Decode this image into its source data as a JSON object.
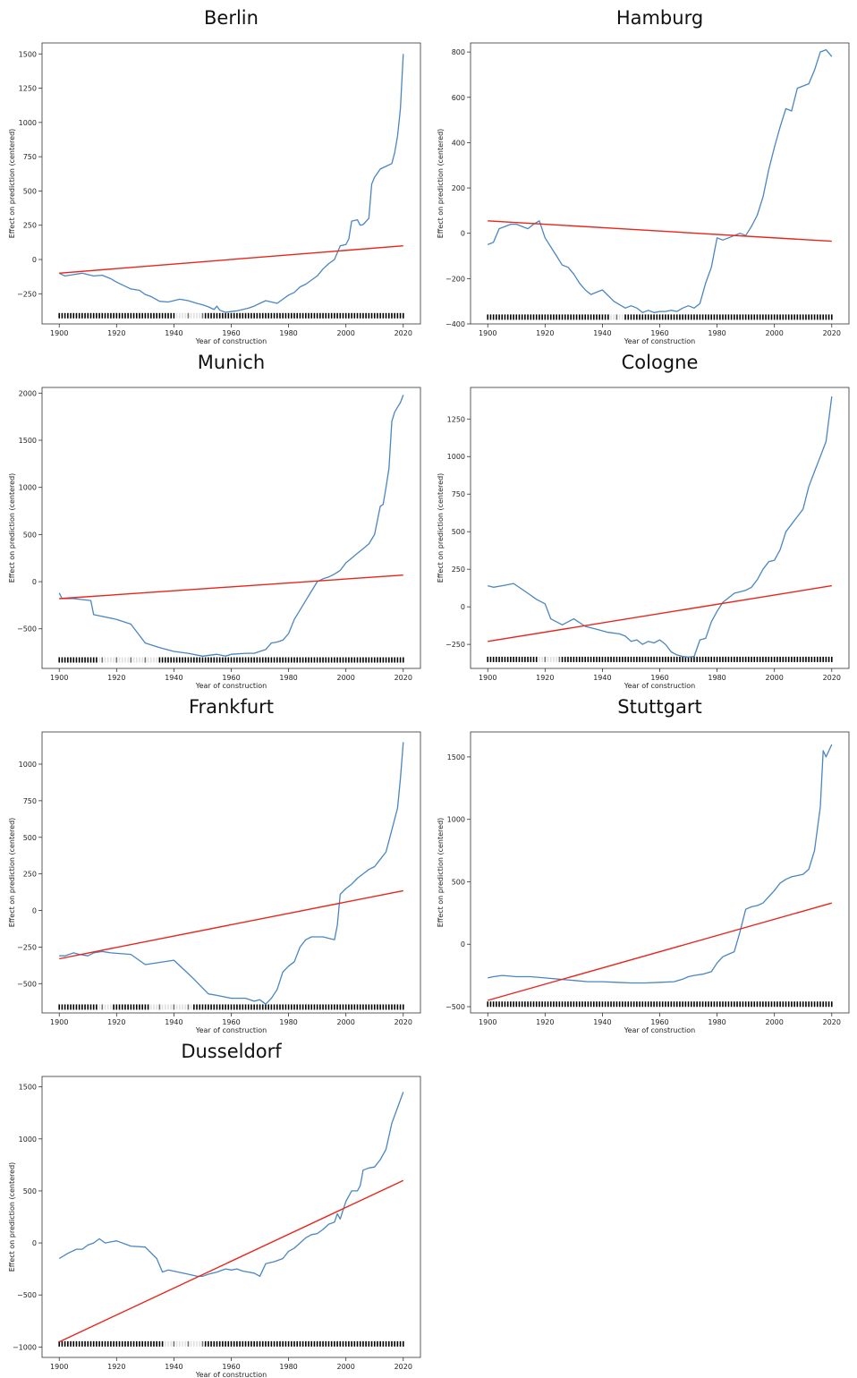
{
  "figure": {
    "xlabel": "Year of construction",
    "ylabel": "Effect on prediction (centered)"
  },
  "colors": {
    "pdp_line": "#4a86c0",
    "fit_line": "#e8251c",
    "rug": "#000000",
    "axes": "#333333"
  },
  "chart_data": [
    {
      "type": "line",
      "title": "Berlin",
      "xlabel": "Year of construction",
      "ylabel": "Effect on prediction (centered)",
      "xlim": [
        1894,
        2026
      ],
      "ylim": [
        -470,
        1580
      ],
      "xticks": [
        1900,
        1920,
        1940,
        1960,
        1980,
        2000,
        2020
      ],
      "yticks": [
        -250,
        0,
        250,
        500,
        750,
        1000,
        1250,
        1500
      ],
      "rug_y": -410,
      "rug_gaps": [
        [
          1941,
          1950
        ]
      ],
      "series": [
        {
          "kind": "pdp",
          "x": [
            1900,
            1902,
            1905,
            1908,
            1910,
            1912,
            1915,
            1918,
            1920,
            1925,
            1928,
            1930,
            1932,
            1935,
            1938,
            1940,
            1942,
            1945,
            1948,
            1950,
            1952,
            1954,
            1955,
            1956,
            1958,
            1960,
            1962,
            1964,
            1966,
            1968,
            1970,
            1972,
            1974,
            1976,
            1978,
            1980,
            1982,
            1984,
            1986,
            1988,
            1990,
            1992,
            1994,
            1996,
            1997,
            1998,
            2000,
            2001,
            2002,
            2004,
            2005,
            2006,
            2008,
            2009,
            2010,
            2012,
            2014,
            2016,
            2017,
            2018,
            2019,
            2020
          ],
          "y": [
            -100,
            -120,
            -110,
            -100,
            -110,
            -120,
            -115,
            -140,
            -165,
            -215,
            -225,
            -255,
            -270,
            -305,
            -310,
            -300,
            -290,
            -300,
            -320,
            -330,
            -345,
            -365,
            -340,
            -370,
            -385,
            -380,
            -375,
            -365,
            -355,
            -340,
            -320,
            -300,
            -310,
            -320,
            -290,
            -260,
            -240,
            -200,
            -180,
            -150,
            -120,
            -70,
            -30,
            0,
            50,
            100,
            110,
            150,
            280,
            290,
            250,
            255,
            300,
            550,
            600,
            660,
            680,
            700,
            780,
            900,
            1100,
            1500
          ]
        },
        {
          "kind": "fit",
          "x": [
            1900,
            2020
          ],
          "y": [
            -100,
            100
          ]
        }
      ]
    },
    {
      "type": "line",
      "title": "Hamburg",
      "xlabel": "Year of construction",
      "ylabel": "Effect on prediction (centered)",
      "xlim": [
        1894,
        2026
      ],
      "ylim": [
        -400,
        840
      ],
      "xticks": [
        1900,
        1920,
        1940,
        1960,
        1980,
        2000,
        2020
      ],
      "yticks": [
        -400,
        -200,
        0,
        200,
        400,
        600,
        800
      ],
      "rug_y": -370,
      "rug_gaps": [
        [
          1943,
          1947
        ]
      ],
      "series": [
        {
          "kind": "pdp",
          "x": [
            1900,
            1902,
            1904,
            1906,
            1908,
            1910,
            1912,
            1914,
            1916,
            1918,
            1920,
            1924,
            1926,
            1928,
            1930,
            1932,
            1934,
            1936,
            1938,
            1940,
            1944,
            1948,
            1950,
            1952,
            1954,
            1956,
            1958,
            1960,
            1962,
            1964,
            1966,
            1968,
            1970,
            1972,
            1974,
            1976,
            1978,
            1980,
            1982,
            1984,
            1986,
            1988,
            1990,
            1992,
            1994,
            1996,
            1998,
            2000,
            2002,
            2004,
            2006,
            2008,
            2010,
            2012,
            2014,
            2016,
            2018,
            2020
          ],
          "y": [
            -50,
            -40,
            20,
            30,
            40,
            40,
            30,
            20,
            40,
            55,
            -20,
            -100,
            -140,
            -150,
            -180,
            -220,
            -250,
            -270,
            -260,
            -250,
            -300,
            -330,
            -320,
            -330,
            -350,
            -340,
            -350,
            -345,
            -345,
            -340,
            -345,
            -330,
            -320,
            -330,
            -310,
            -220,
            -150,
            -20,
            -30,
            -20,
            -10,
            0,
            -10,
            30,
            80,
            160,
            280,
            380,
            470,
            550,
            540,
            640,
            650,
            660,
            720,
            800,
            810,
            780
          ]
        },
        {
          "kind": "fit",
          "x": [
            1900,
            2020
          ],
          "y": [
            55,
            -35
          ]
        }
      ]
    },
    {
      "type": "line",
      "title": "Munich",
      "xlabel": "Year of construction",
      "ylabel": "Effect on prediction (centered)",
      "xlim": [
        1894,
        2026
      ],
      "ylim": [
        -920,
        2060
      ],
      "xticks": [
        1900,
        1920,
        1940,
        1960,
        1980,
        2000,
        2020
      ],
      "yticks": [
        -500,
        0,
        500,
        1000,
        1500,
        2000
      ],
      "rug_y": -830,
      "rug_gaps": [
        [
          1914,
          1934
        ]
      ],
      "series": [
        {
          "kind": "pdp",
          "x": [
            1900,
            1901,
            1905,
            1911,
            1912,
            1920,
            1925,
            1930,
            1935,
            1940,
            1945,
            1950,
            1955,
            1958,
            1960,
            1965,
            1968,
            1970,
            1972,
            1974,
            1976,
            1978,
            1980,
            1982,
            1984,
            1986,
            1988,
            1990,
            1992,
            1994,
            1996,
            1998,
            2000,
            2002,
            2004,
            2006,
            2008,
            2010,
            2012,
            2013,
            2014,
            2015,
            2016,
            2017,
            2018,
            2019,
            2020
          ],
          "y": [
            -120,
            -180,
            -180,
            -200,
            -350,
            -400,
            -450,
            -650,
            -700,
            -740,
            -760,
            -790,
            -770,
            -790,
            -770,
            -760,
            -760,
            -740,
            -720,
            -650,
            -640,
            -620,
            -550,
            -400,
            -300,
            -200,
            -100,
            0,
            30,
            50,
            80,
            120,
            200,
            250,
            300,
            350,
            400,
            500,
            800,
            820,
            1000,
            1200,
            1700,
            1800,
            1850,
            1900,
            1980
          ]
        },
        {
          "kind": "fit",
          "x": [
            1900,
            2020
          ],
          "y": [
            -180,
            70
          ]
        }
      ]
    },
    {
      "type": "line",
      "title": "Cologne",
      "xlabel": "Year of construction",
      "ylabel": "Effect on prediction (centered)",
      "xlim": [
        1894,
        2026
      ],
      "ylim": [
        -410,
        1460
      ],
      "xticks": [
        1900,
        1920,
        1940,
        1960,
        1980,
        2000,
        2020
      ],
      "yticks": [
        -250,
        0,
        250,
        500,
        750,
        1000,
        1250
      ],
      "rug_y": -350,
      "rug_gaps": [
        [
          1918,
          1925
        ]
      ],
      "series": [
        {
          "kind": "pdp",
          "x": [
            1900,
            1902,
            1905,
            1909,
            1914,
            1917,
            1920,
            1922,
            1926,
            1928,
            1930,
            1934,
            1938,
            1942,
            1946,
            1948,
            1950,
            1952,
            1954,
            1956,
            1958,
            1960,
            1962,
            1964,
            1966,
            1968,
            1970,
            1972,
            1974,
            1976,
            1978,
            1980,
            1982,
            1984,
            1986,
            1988,
            1990,
            1992,
            1994,
            1996,
            1998,
            2000,
            2002,
            2004,
            2006,
            2008,
            2010,
            2012,
            2014,
            2016,
            2018,
            2020
          ],
          "y": [
            140,
            130,
            140,
            155,
            90,
            50,
            20,
            -80,
            -120,
            -100,
            -80,
            -130,
            -150,
            -170,
            -180,
            -195,
            -230,
            -220,
            -250,
            -230,
            -240,
            -220,
            -250,
            -300,
            -320,
            -330,
            -335,
            -330,
            -220,
            -210,
            -100,
            -30,
            30,
            60,
            90,
            100,
            110,
            130,
            180,
            250,
            300,
            310,
            380,
            500,
            550,
            600,
            650,
            800,
            900,
            1000,
            1100,
            1400
          ]
        },
        {
          "kind": "fit",
          "x": [
            1900,
            2020
          ],
          "y": [
            -230,
            140
          ]
        }
      ]
    },
    {
      "type": "line",
      "title": "Frankfurt",
      "xlabel": "Year of construction",
      "ylabel": "Effect on prediction (centered)",
      "xlim": [
        1894,
        2026
      ],
      "ylim": [
        -700,
        1220
      ],
      "xticks": [
        1900,
        1920,
        1940,
        1960,
        1980,
        2000,
        2020
      ],
      "yticks": [
        -500,
        -250,
        0,
        250,
        500,
        750,
        1000
      ],
      "rug_y": -660,
      "rug_gaps": [
        [
          1914,
          1918
        ],
        [
          1932,
          1946
        ]
      ],
      "series": [
        {
          "kind": "pdp",
          "x": [
            1900,
            1902,
            1905,
            1907,
            1910,
            1912,
            1915,
            1918,
            1925,
            1930,
            1940,
            1946,
            1950,
            1952,
            1955,
            1960,
            1965,
            1968,
            1970,
            1972,
            1974,
            1976,
            1978,
            1980,
            1982,
            1984,
            1986,
            1988,
            1990,
            1992,
            1994,
            1996,
            1997,
            1998,
            2000,
            2002,
            2004,
            2006,
            2008,
            2010,
            2012,
            2014,
            2016,
            2018,
            2019,
            2020
          ],
          "y": [
            -310,
            -310,
            -290,
            -300,
            -310,
            -290,
            -280,
            -290,
            -300,
            -370,
            -340,
            -450,
            -530,
            -570,
            -580,
            -600,
            -600,
            -620,
            -610,
            -640,
            -600,
            -540,
            -420,
            -380,
            -350,
            -250,
            -200,
            -180,
            -180,
            -180,
            -190,
            -200,
            -100,
            110,
            150,
            180,
            220,
            250,
            280,
            300,
            350,
            400,
            550,
            700,
            900,
            1150
          ]
        },
        {
          "kind": "fit",
          "x": [
            1900,
            2020
          ],
          "y": [
            -330,
            135
          ]
        }
      ]
    },
    {
      "type": "line",
      "title": "Stuttgart",
      "xlabel": "Year of construction",
      "ylabel": "Effect on prediction (centered)",
      "xlim": [
        1894,
        2026
      ],
      "ylim": [
        -550,
        1700
      ],
      "xticks": [
        1900,
        1920,
        1940,
        1960,
        1980,
        2000,
        2020
      ],
      "yticks": [
        -500,
        0,
        500,
        1000,
        1500
      ],
      "rug_y": -480,
      "rug_gaps": [],
      "series": [
        {
          "kind": "pdp",
          "x": [
            1900,
            1902,
            1905,
            1910,
            1915,
            1920,
            1925,
            1930,
            1935,
            1940,
            1945,
            1950,
            1955,
            1960,
            1965,
            1968,
            1970,
            1972,
            1975,
            1978,
            1980,
            1982,
            1984,
            1986,
            1988,
            1990,
            1992,
            1994,
            1996,
            1998,
            2000,
            2002,
            2004,
            2006,
            2008,
            2010,
            2012,
            2014,
            2016,
            2017,
            2018,
            2019,
            2020
          ],
          "y": [
            -270,
            -260,
            -250,
            -260,
            -260,
            -270,
            -280,
            -290,
            -300,
            -300,
            -305,
            -310,
            -310,
            -305,
            -300,
            -280,
            -260,
            -250,
            -240,
            -220,
            -150,
            -100,
            -80,
            -60,
            100,
            280,
            300,
            310,
            330,
            380,
            430,
            490,
            520,
            540,
            550,
            560,
            600,
            750,
            1100,
            1550,
            1500,
            1550,
            1600
          ]
        },
        {
          "kind": "fit",
          "x": [
            1900,
            2020
          ],
          "y": [
            -450,
            330
          ]
        }
      ]
    },
    {
      "type": "line",
      "title": "Dusseldorf",
      "xlabel": "Year of construction",
      "ylabel": "Effect on prediction (centered)",
      "xlim": [
        1894,
        2026
      ],
      "ylim": [
        -1100,
        1600
      ],
      "xticks": [
        1900,
        1920,
        1940,
        1960,
        1980,
        2000,
        2020
      ],
      "yticks": [
        -1000,
        -500,
        0,
        500,
        1000,
        1500
      ],
      "rug_y": -970,
      "rug_gaps": [
        [
          1937,
          1950
        ]
      ],
      "series": [
        {
          "kind": "pdp",
          "x": [
            1900,
            1903,
            1906,
            1908,
            1910,
            1912,
            1914,
            1916,
            1920,
            1925,
            1930,
            1934,
            1936,
            1938,
            1945,
            1948,
            1950,
            1952,
            1955,
            1958,
            1960,
            1962,
            1964,
            1966,
            1968,
            1970,
            1972,
            1975,
            1978,
            1980,
            1982,
            1984,
            1986,
            1988,
            1990,
            1992,
            1994,
            1996,
            1997,
            1998,
            2000,
            2002,
            2004,
            2005,
            2006,
            2008,
            2010,
            2012,
            2014,
            2016,
            2018,
            2020
          ],
          "y": [
            -150,
            -100,
            -60,
            -60,
            -20,
            0,
            40,
            0,
            20,
            -30,
            -40,
            -150,
            -280,
            -260,
            -300,
            -320,
            -320,
            -300,
            -280,
            -250,
            -260,
            -250,
            -270,
            -280,
            -290,
            -320,
            -200,
            -180,
            -150,
            -80,
            -50,
            0,
            50,
            80,
            90,
            130,
            180,
            200,
            280,
            230,
            400,
            500,
            500,
            550,
            700,
            720,
            730,
            800,
            900,
            1150,
            1300,
            1450
          ]
        },
        {
          "kind": "fit",
          "x": [
            1900,
            2020
          ],
          "y": [
            -950,
            600
          ]
        }
      ]
    }
  ]
}
